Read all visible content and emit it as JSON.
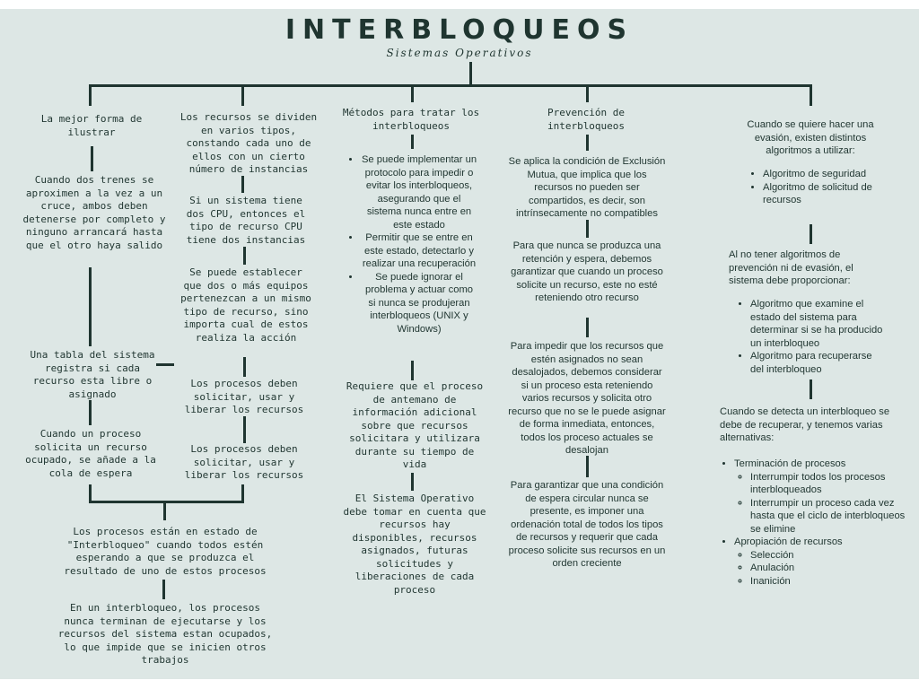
{
  "header": {
    "title": "INTERBLOQUEOS",
    "subtitle": "Sistemas Operativos"
  },
  "col1": {
    "heading": "La mejor forma de ilustrar",
    "trains": "Cuando dos trenes se aproximen a la vez a un cruce, ambos deben detenerse por completo y ninguno arrancará hasta que el otro haya salido",
    "table": "Una tabla del sistema registra si cada recurso esta libre o asignado",
    "queue": "Cuando un proceso solicita un recurso ocupado, se añade a la cola de espera",
    "state": "Los procesos están en estado de \"Interbloqueo\" cuando todos estén esperando a que se produzca el resultado de uno de estos procesos",
    "consequence": "En un interbloqueo, los procesos nunca terminan de ejecutarse y los recursos del sistema estan ocupados, lo que impide que se inicien otros trabajos"
  },
  "col2": {
    "types": "Los recursos se dividen en varios tipos, constando cada uno de ellos con un cierto número de instancias",
    "cpu": "Si un sistema tiene dos CPU, entonces el tipo de recurso CPU tiene dos instancias",
    "equipment": "Se puede establecer que dos o más equipos pertenezcan a un mismo tipo de recurso, sino importa cual de estos realiza la acción",
    "usage1": "Los procesos deben solicitar, usar y liberar los recursos",
    "usage2": "Los procesos deben solicitar, usar y liberar los recursos"
  },
  "col3": {
    "heading": "Métodos para tratar los interbloqueos",
    "methods": [
      "Se puede implementar un protocolo para impedir o evitar los interbloqueos, asegurando que el sistema nunca entre en este estado",
      "Permitir que se entre en este estado, detectarlo y realizar una recuperación",
      "Se puede ignorar el problema y actuar como si nunca se produjeran interbloqueos (UNIX y Windows)"
    ],
    "info": "Requiere que el proceso de antemano de información adicional sobre que recursos solicitara y utilizara durante su tiempo de vida",
    "os": "El Sistema Operativo debe tomar en cuenta que recursos hay disponibles, recursos asignados, futuras solicitudes y liberaciones de cada proceso"
  },
  "col4": {
    "heading": "Prevención de interbloqueos",
    "mutex": "Se aplica la condición de Exclusión Mutua, que implica que los recursos no pueden ser compartidos, es decir, son intrínsecamente no compatibles",
    "hold": "Para que nunca se produzca una retención y espera, debemos garantizar que cuando un proceso solicite un recurso, este no esté reteniendo otro recurso",
    "preempt": "Para impedir que los recursos que estén asignados no sean desalojados, debemos considerar si un proceso esta reteniendo varios recursos y solicita otro recurso que no se le puede asignar de forma inmediata, entonces, todos los proceso actuales se desalojan",
    "circular": "Para garantizar que una condición de espera circular nunca se presente, es imponer una ordenación total de todos los tipos de recursos y requerir que cada proceso solicite sus recursos en un orden creciente"
  },
  "col5": {
    "avoid_intro": "Cuando se quiere hacer una evasión, existen distintos algoritmos a utilizar:",
    "avoid_list": [
      "Algoritmo de seguridad",
      "Algoritmo de solicitud de recursos"
    ],
    "detect_intro": "Al no tener algoritmos de prevención ni de evasión, el sistema debe proporcionar:",
    "detect_list": [
      "Algoritmo que examine el estado del sistema para determinar si se ha producido un interbloqueo",
      "Algoritmo para recuperarse del interbloqueo"
    ],
    "recover_intro": "Cuando se detecta un interbloqueo se debe de recuperar, y tenemos varias alternativas:",
    "recover_list": [
      {
        "label": "Terminación de procesos",
        "subs": [
          "Interrumpir todos los procesos interbloqueados",
          "Interrumpir un proceso cada vez hasta que el ciclo de interbloqueos se elimine"
        ]
      },
      {
        "label": "Apropiación de recursos",
        "subs": [
          "Selección",
          "Anulación",
          "Inanición"
        ]
      }
    ]
  }
}
